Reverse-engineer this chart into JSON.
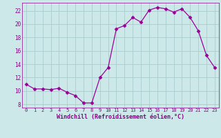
{
  "x": [
    0,
    1,
    2,
    3,
    4,
    5,
    6,
    7,
    8,
    9,
    10,
    11,
    12,
    13,
    14,
    15,
    16,
    17,
    18,
    19,
    20,
    21,
    22,
    23
  ],
  "y": [
    11.0,
    10.3,
    10.3,
    10.2,
    10.4,
    9.8,
    9.3,
    8.2,
    8.2,
    12.0,
    13.5,
    19.3,
    19.8,
    21.0,
    20.3,
    22.1,
    22.5,
    22.3,
    21.8,
    22.3,
    21.0,
    19.0,
    15.3,
    13.5
  ],
  "line_color": "#990099",
  "marker": "D",
  "marker_size": 2.5,
  "bg_color": "#cce8e8",
  "grid_color": "#aacccc",
  "xlabel": "Windchill (Refroidissement éolien,°C)",
  "ylabel": "",
  "xlim": [
    -0.5,
    23.5
  ],
  "ylim": [
    7.5,
    23.2
  ],
  "yticks": [
    8,
    10,
    12,
    14,
    16,
    18,
    20,
    22
  ],
  "xticks": [
    0,
    1,
    2,
    3,
    4,
    5,
    6,
    7,
    8,
    9,
    10,
    11,
    12,
    13,
    14,
    15,
    16,
    17,
    18,
    19,
    20,
    21,
    22,
    23
  ],
  "font_color": "#880088"
}
